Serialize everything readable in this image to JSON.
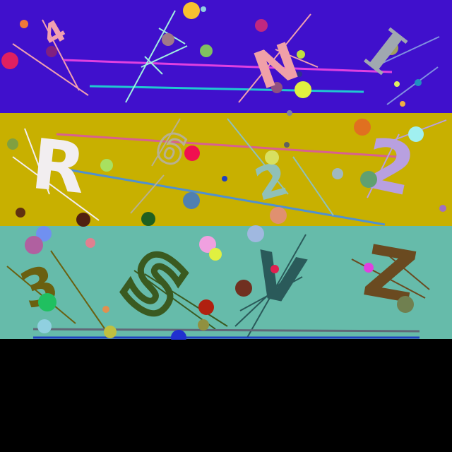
{
  "canvas": {
    "background": "#000000"
  },
  "bands": [
    {
      "name": "band-top",
      "color": "#4010CC",
      "glyphs": [
        {
          "text": "4",
          "name": "glyph-4-small",
          "color": "#F0A0B0"
        },
        {
          "text": "N",
          "name": "glyph-n",
          "color": "#F0A0A8"
        },
        {
          "text": "I",
          "name": "glyph-i",
          "color": "#A0A8B0"
        }
      ]
    },
    {
      "name": "band-middle",
      "color": "#C8B000",
      "glyphs": [
        {
          "text": "R",
          "name": "glyph-r",
          "color": "#F2EEF0"
        },
        {
          "text": "6",
          "name": "glyph-6",
          "color": "#B8B090"
        },
        {
          "text": "2",
          "name": "glyph-2-small",
          "color": "#90C0B8"
        },
        {
          "text": "2",
          "name": "glyph-2-large",
          "color": "#B8A0E0"
        }
      ]
    },
    {
      "name": "band-bottom",
      "color": "#66BBAA",
      "glyphs": [
        {
          "text": "3",
          "name": "glyph-3",
          "color": "#6A6010"
        },
        {
          "text": "S",
          "name": "glyph-s",
          "color": "#3A5A20"
        },
        {
          "text": "V",
          "name": "glyph-v",
          "color": "#2A5A5A"
        },
        {
          "text": "Z",
          "name": "glyph-z",
          "color": "#6A4A20"
        }
      ]
    }
  ]
}
